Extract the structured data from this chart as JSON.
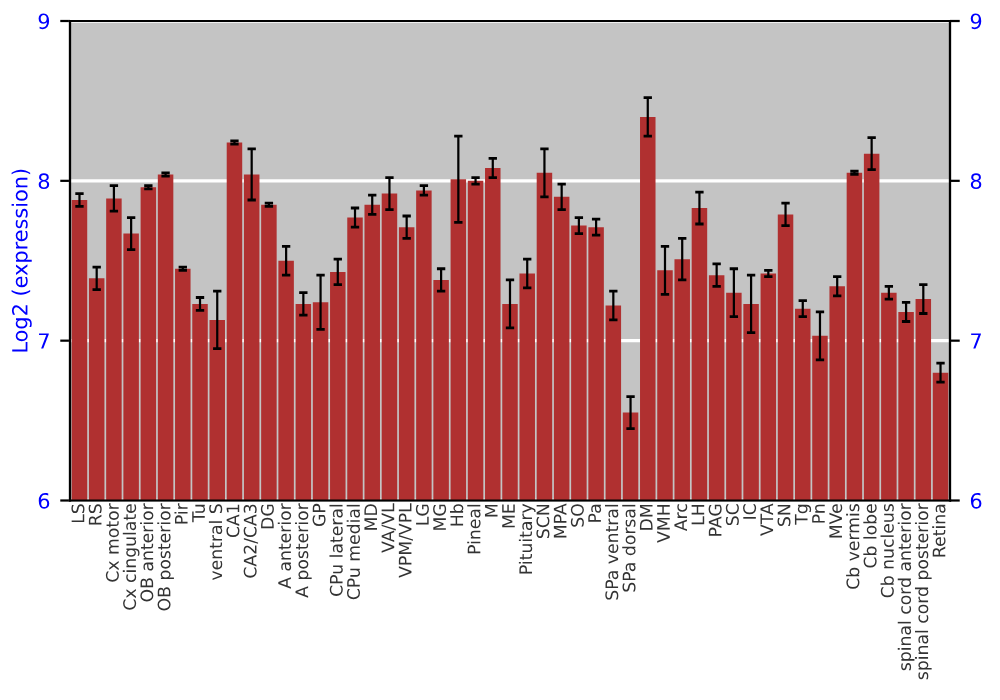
{
  "chart_data": {
    "type": "bar",
    "ylabel": "Log2 (expression)",
    "categories": [
      "LS",
      "RS",
      "Cx motor",
      "Cx cingulate",
      "OB anterior",
      "OB posterior",
      "Pir",
      "Tu",
      "ventral S",
      "CA1",
      "CA2/CA3",
      "DG",
      "A anterior",
      "A posterior",
      "GP",
      "CPu lateral",
      "CPu medial",
      "MD",
      "VA/VL",
      "VPM/VPL",
      "LG",
      "MG",
      "Hb",
      "Pineal",
      "M",
      "ME",
      "Pituitary",
      "SCN",
      "MPA",
      "SO",
      "Pa",
      "SPa ventral",
      "SPa dorsal",
      "DM",
      "VMH",
      "Arc",
      "LH",
      "PAG",
      "SC",
      "IC",
      "VTA",
      "SN",
      "Tg",
      "Pn",
      "MVe",
      "Cb vermis",
      "Cb lobe",
      "Cb nucleus",
      "spinal cord anterior",
      "spinal cord posterior",
      "Retina"
    ],
    "values": [
      7.88,
      7.39,
      7.89,
      7.67,
      7.96,
      8.04,
      7.45,
      7.23,
      7.13,
      8.24,
      8.04,
      7.85,
      7.5,
      7.23,
      7.24,
      7.43,
      7.77,
      7.85,
      7.92,
      7.71,
      7.94,
      7.38,
      8.01,
      8.0,
      8.08,
      7.23,
      7.42,
      8.05,
      7.9,
      7.72,
      7.71,
      7.22,
      6.55,
      8.4,
      7.44,
      7.51,
      7.83,
      7.41,
      7.3,
      7.23,
      7.42,
      7.79,
      7.2,
      7.03,
      7.34,
      8.05,
      8.17,
      7.3,
      7.18,
      7.26,
      6.8
    ],
    "errors": [
      0.04,
      0.07,
      0.08,
      0.1,
      0.01,
      0.01,
      0.01,
      0.04,
      0.18,
      0.01,
      0.16,
      0.01,
      0.09,
      0.07,
      0.17,
      0.08,
      0.06,
      0.06,
      0.1,
      0.07,
      0.03,
      0.07,
      0.27,
      0.02,
      0.06,
      0.15,
      0.09,
      0.15,
      0.08,
      0.05,
      0.05,
      0.09,
      0.1,
      0.12,
      0.15,
      0.13,
      0.1,
      0.07,
      0.15,
      0.18,
      0.02,
      0.07,
      0.05,
      0.15,
      0.06,
      0.01,
      0.1,
      0.04,
      0.06,
      0.09,
      0.06
    ],
    "color": "#b03030",
    "ylim": [
      6,
      9
    ],
    "yticks": [
      6,
      7,
      8,
      9
    ],
    "y2lim": [
      6,
      9
    ],
    "y2ticks": [
      6,
      7,
      8,
      9
    ],
    "grid": "y"
  }
}
